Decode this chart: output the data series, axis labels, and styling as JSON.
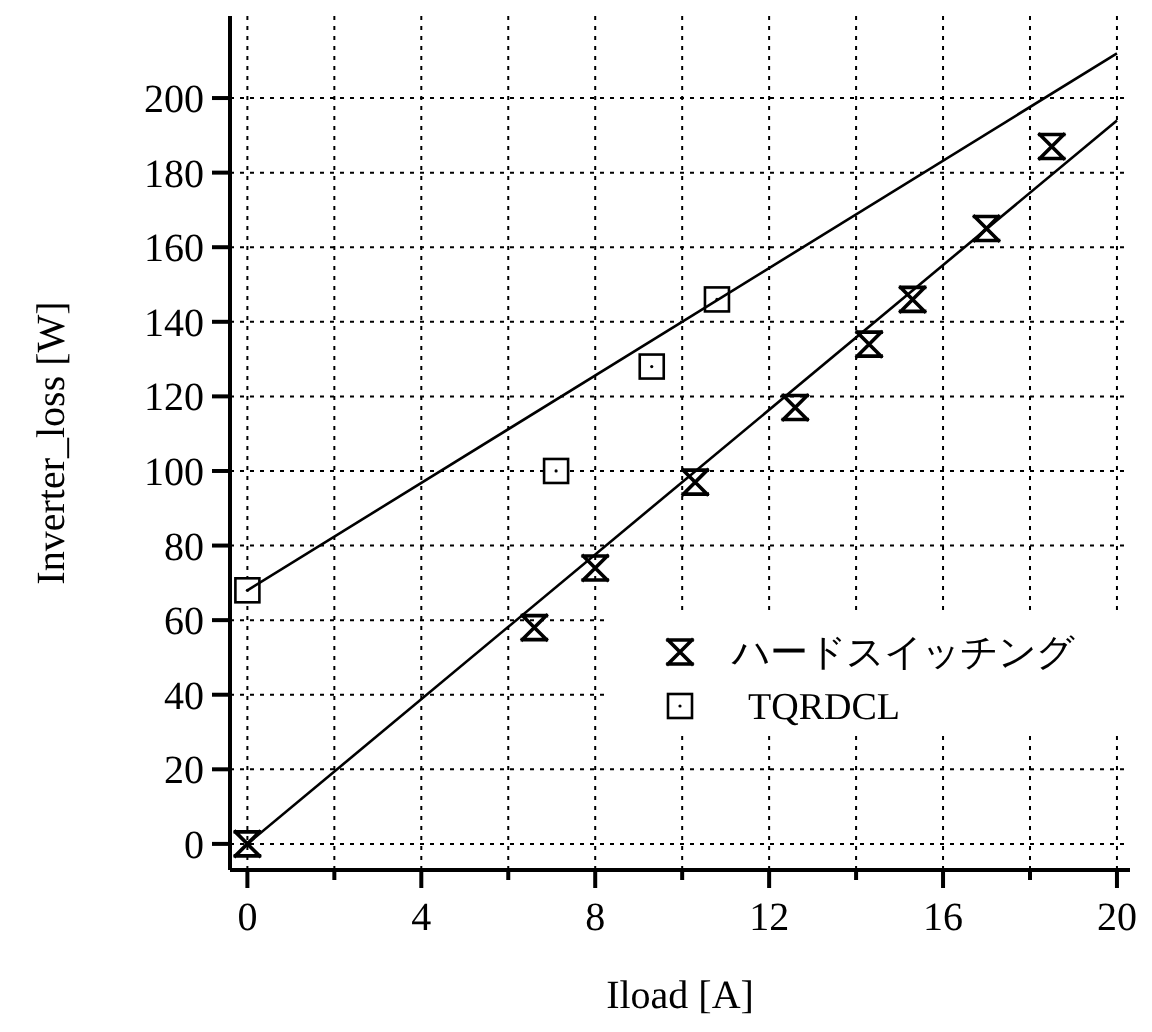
{
  "chart_data": {
    "type": "scatter",
    "xlabel": "Iload [A]",
    "ylabel": "Inverter_loss [W]",
    "xlim": [
      -0.4,
      20.3
    ],
    "ylim": [
      -7,
      222
    ],
    "xticks": [
      0,
      {
        "value": 2,
        "label": null
      },
      4,
      {
        "value": 6,
        "label": null
      },
      8,
      {
        "value": 10,
        "label": null
      },
      12,
      {
        "value": 14,
        "label": null
      },
      16,
      {
        "value": 18,
        "label": null
      },
      20
    ],
    "yticks": [
      0,
      20,
      40,
      60,
      80,
      100,
      120,
      140,
      160,
      180,
      200
    ],
    "grid": true,
    "legend": "bottom right",
    "series": [
      {
        "name": "ハードスイッチング",
        "color": "#000000",
        "marker": "cross",
        "x": [
          0,
          6.6,
          8,
          10.3,
          12.6,
          14.3,
          15.3,
          17,
          18.5
        ],
        "values": [
          0,
          58,
          74,
          97,
          117,
          134,
          146,
          165,
          187
        ]
      },
      {
        "name": "TQRDCL",
        "color": "#000000",
        "marker": "square",
        "x": [
          0,
          7.1,
          9.3,
          10.8
        ],
        "values": [
          68,
          100,
          128,
          146
        ]
      },
      {
        "type": "line",
        "color": "#000000",
        "x": [
          0,
          20
        ],
        "values": [
          0,
          194
        ]
      },
      {
        "type": "line",
        "color": "#000000",
        "x": [
          0,
          20
        ],
        "values": [
          68,
          212
        ]
      }
    ]
  }
}
